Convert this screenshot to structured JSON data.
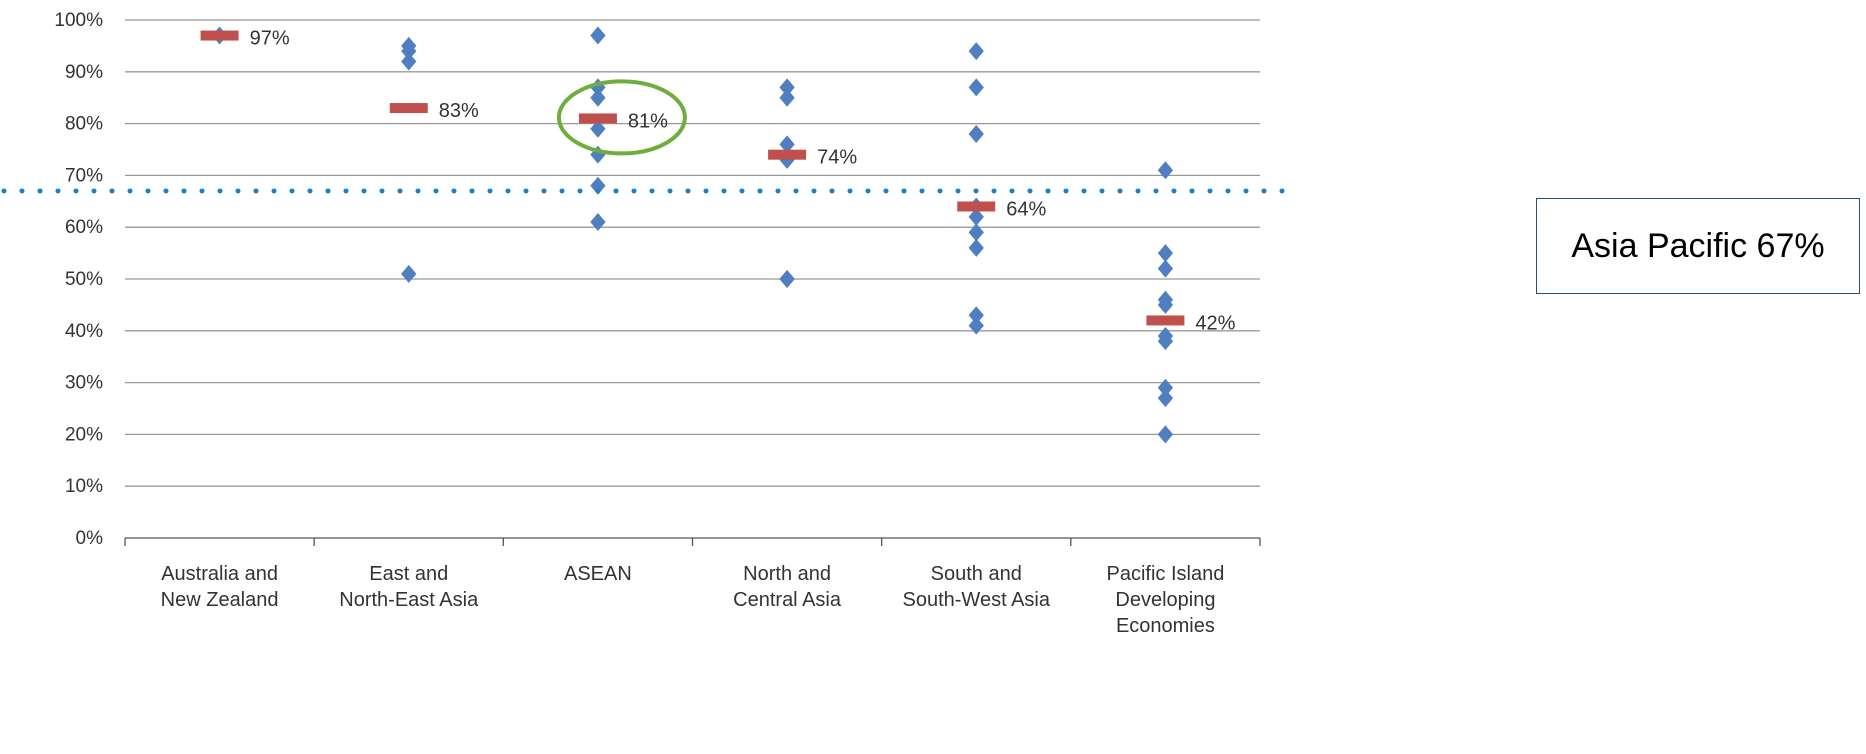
{
  "chart_data": {
    "type": "scatter",
    "categories": [
      [
        "Australia and",
        "New Zealand"
      ],
      [
        "East and",
        "North-East Asia"
      ],
      [
        "ASEAN"
      ],
      [
        "North and",
        "Central Asia"
      ],
      [
        "South and",
        "South-West Asia"
      ],
      [
        "Pacific Island",
        "Developing",
        "Economies"
      ]
    ],
    "y_ticks": [
      "0%",
      "10%",
      "20%",
      "30%",
      "40%",
      "50%",
      "60%",
      "70%",
      "80%",
      "90%",
      "100%"
    ],
    "ylim": [
      0,
      100
    ],
    "grid": true,
    "points": [
      [
        97
      ],
      [
        95,
        94,
        92,
        51
      ],
      [
        97,
        87,
        85,
        79,
        74,
        68,
        61
      ],
      [
        87,
        85,
        76,
        73,
        50,
        50
      ],
      [
        94,
        87,
        78,
        64,
        62,
        59,
        56,
        43,
        41
      ],
      [
        71,
        55,
        52,
        46,
        45,
        39,
        38,
        29,
        27,
        20
      ]
    ],
    "averages": [
      97,
      83,
      81,
      74,
      64,
      42
    ],
    "average_labels": [
      "97%",
      "83%",
      "81%",
      "74%",
      "64%",
      "42%"
    ],
    "reference_line": {
      "value": 67,
      "label": "Asia Pacific 67%"
    },
    "highlight_category_index": 2,
    "colors": {
      "points": "#4f7fc1",
      "averages": "#c0504d",
      "reference": "#1f7fc4",
      "highlight": "#6fae3c",
      "grid": "#999999"
    }
  }
}
